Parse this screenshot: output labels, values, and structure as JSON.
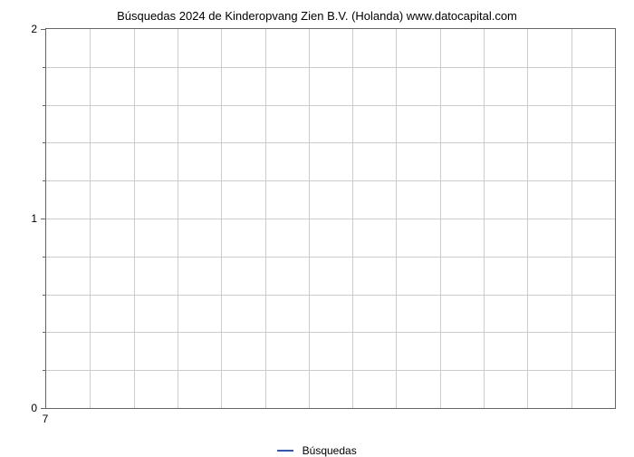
{
  "chart": {
    "type": "line",
    "title_main": "Búsquedas 2024 de Kinderopvang Zien B.V. (Holanda)",
    "title_source": "www.datocapital.com",
    "title_fontsize": 13,
    "background_color": "#ffffff",
    "plot_border_color": "#666666",
    "grid_color": "#cccccc",
    "label_fontsize": 12,
    "ylim": [
      0,
      2
    ],
    "y_major_ticks": [
      0,
      1,
      2
    ],
    "y_minor_tick_count_between": 4,
    "x_tick_label": "7",
    "x_grid_count": 13,
    "y_grid_rows": 10,
    "legend": {
      "label": "Búsquedas",
      "color": "#2b55c9",
      "line_width": 2
    },
    "series": {
      "name": "Búsquedas",
      "color": "#2b55c9",
      "values": []
    }
  }
}
